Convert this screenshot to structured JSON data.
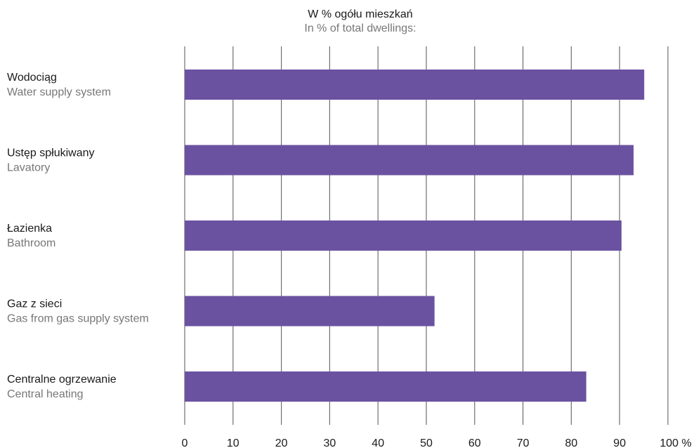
{
  "chart_data": {
    "type": "bar",
    "orientation": "horizontal",
    "title": "W % ogółu mieszkań",
    "subtitle": "In % of total dwellings:",
    "categories": [
      {
        "pl": "Wodociąg",
        "en": "Water supply system"
      },
      {
        "pl": "Ustęp spłukiwany",
        "en": "Lavatory"
      },
      {
        "pl": "Łazienka",
        "en": "Bathroom"
      },
      {
        "pl": "Gaz z sieci",
        "en": "Gas from gas supply system"
      },
      {
        "pl": "Centralne ogrzewanie",
        "en": "Central heating"
      }
    ],
    "values": [
      95.1,
      92.9,
      90.4,
      51.7,
      83.1
    ],
    "xlim": [
      0,
      100
    ],
    "xticks": [
      "0",
      "10",
      "20",
      "30",
      "40",
      "50",
      "60",
      "70",
      "80",
      "90",
      "100 %"
    ],
    "grid": true,
    "bar_color": "#6b52a1",
    "grid_color": "#6f6f6f"
  }
}
